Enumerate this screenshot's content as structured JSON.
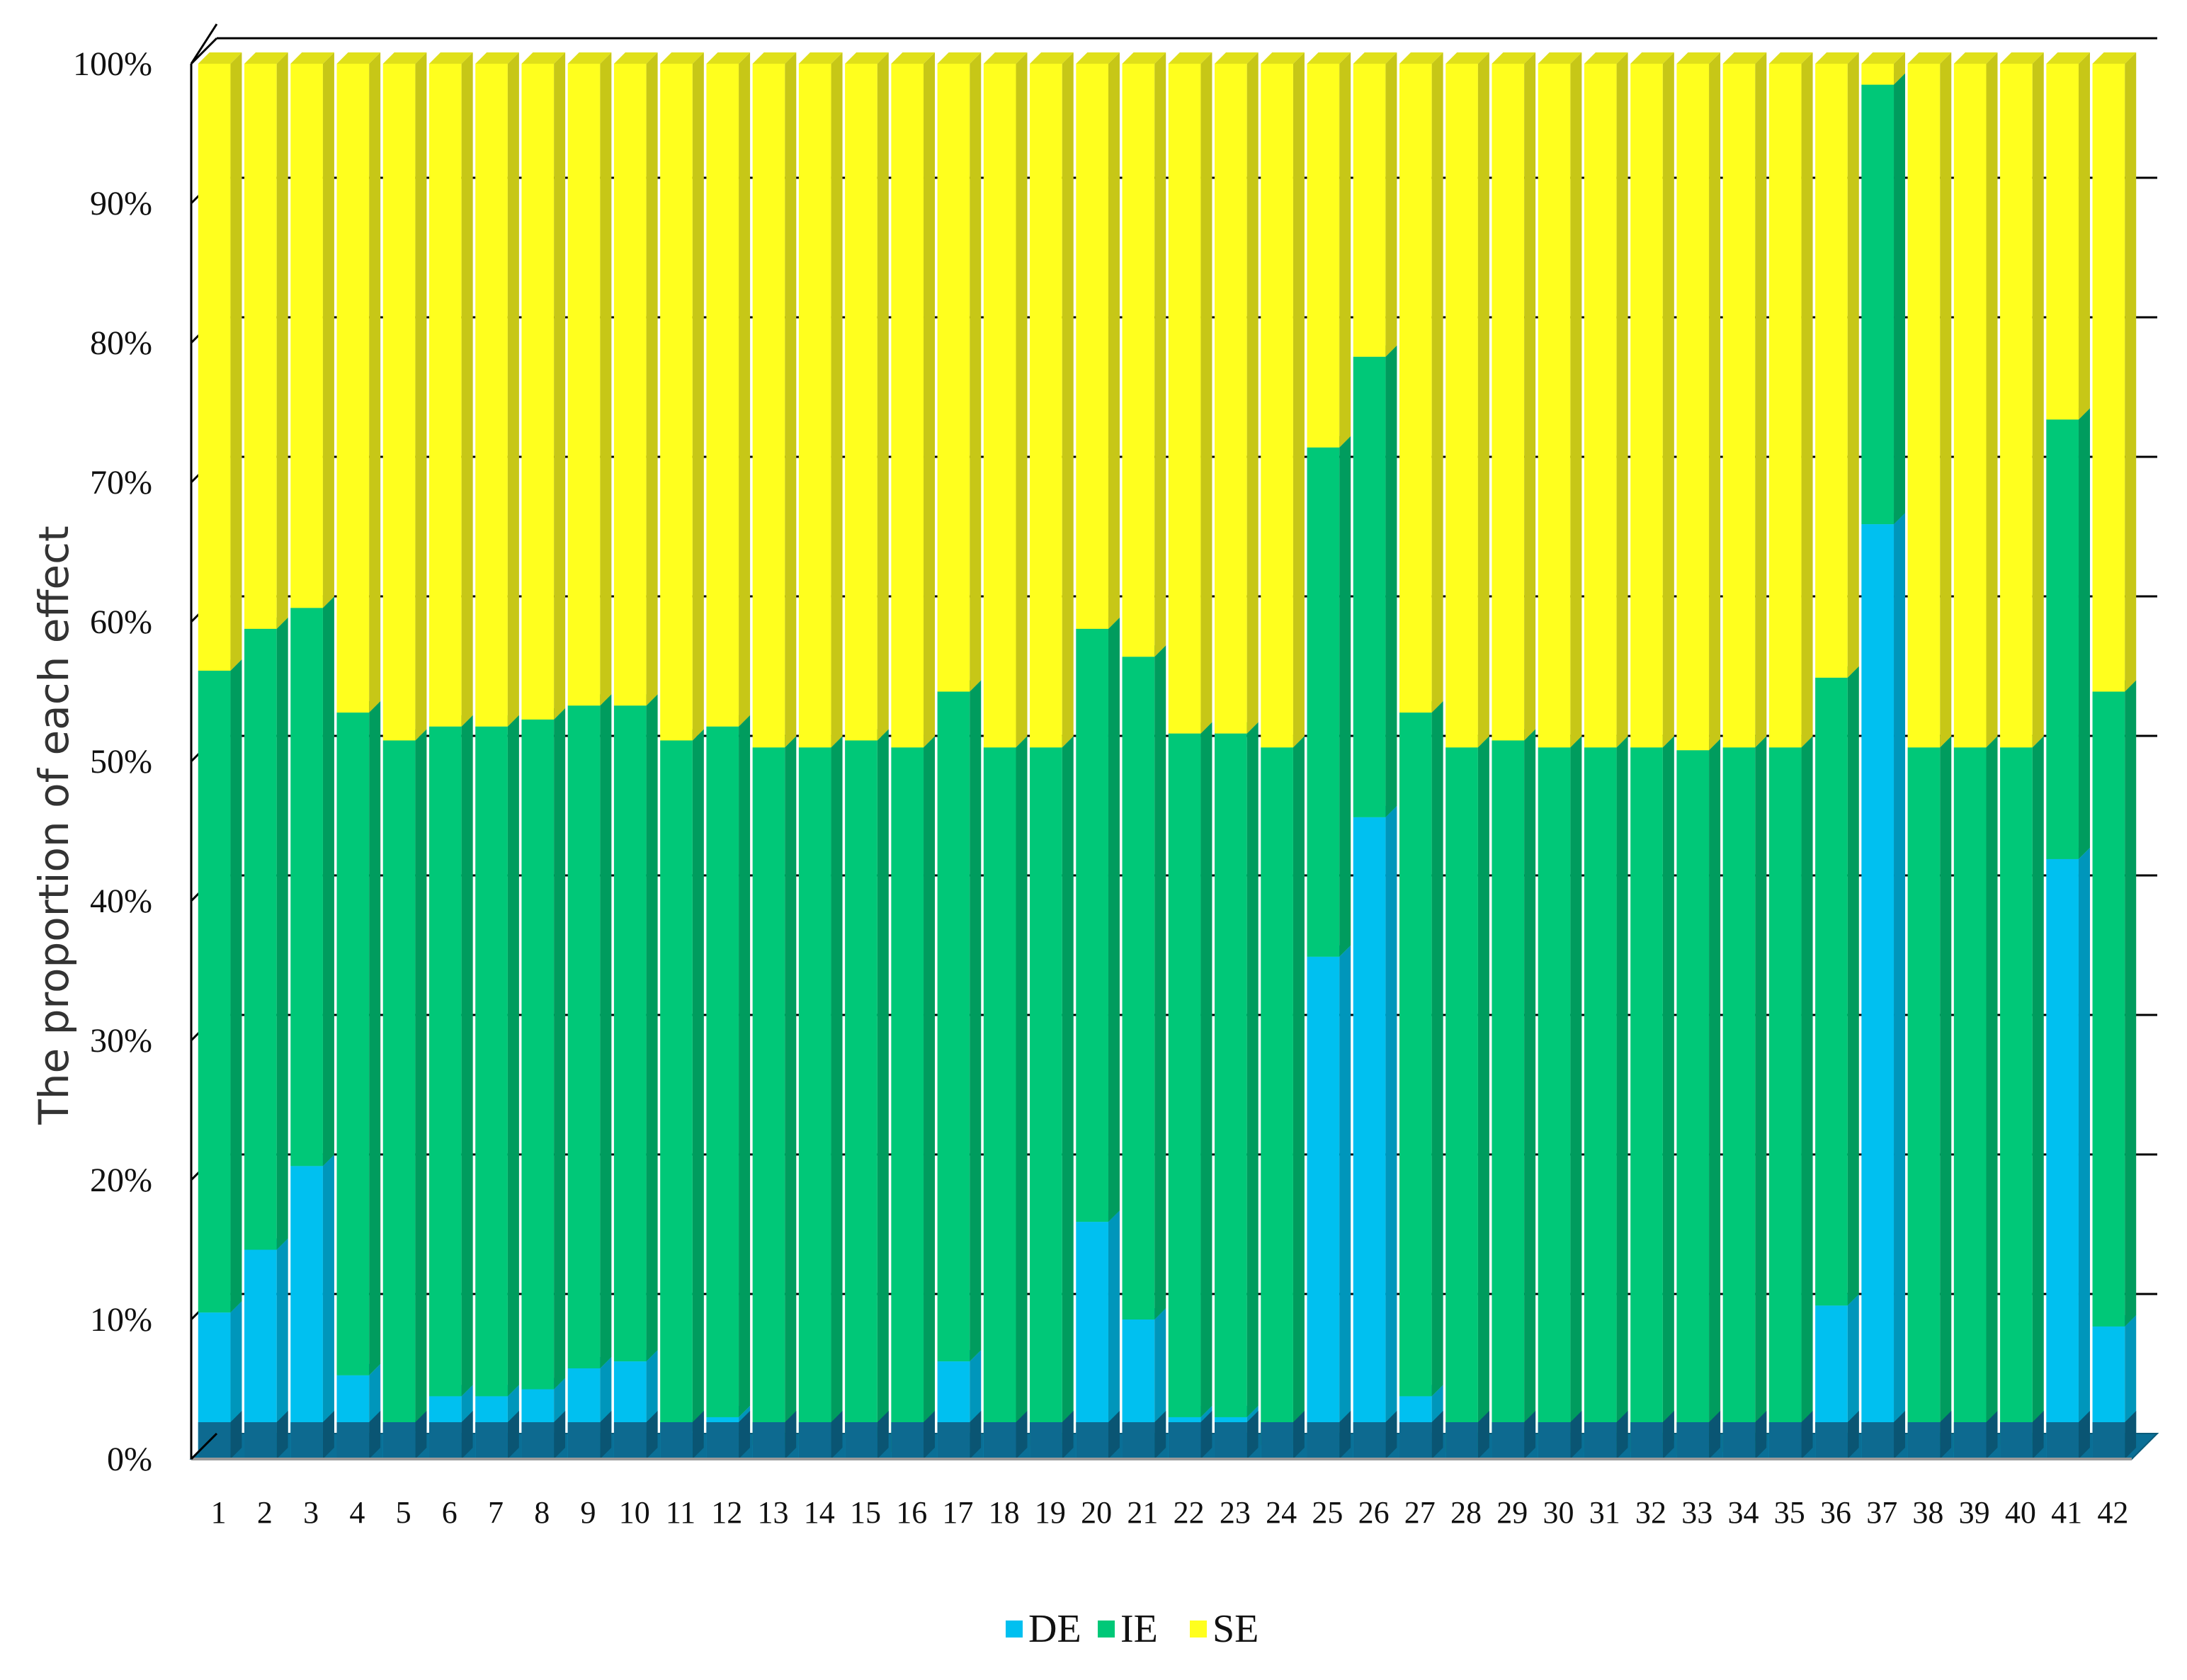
{
  "chart_data": {
    "type": "bar",
    "stacked": true,
    "percent_stacked": true,
    "three_d": true,
    "title": "",
    "xlabel": "",
    "ylabel": "The proportion of each effect",
    "ylim": [
      0,
      100
    ],
    "y_ticks": [
      "0%",
      "10%",
      "20%",
      "30%",
      "40%",
      "50%",
      "60%",
      "70%",
      "80%",
      "90%",
      "100%"
    ],
    "grid": true,
    "legend_position": "bottom",
    "categories": [
      "1",
      "2",
      "3",
      "4",
      "5",
      "6",
      "7",
      "8",
      "9",
      "10",
      "11",
      "12",
      "13",
      "14",
      "15",
      "16",
      "17",
      "18",
      "19",
      "20",
      "21",
      "22",
      "23",
      "24",
      "25",
      "26",
      "27",
      "28",
      "29",
      "30",
      "31",
      "32",
      "33",
      "34",
      "35",
      "36",
      "37",
      "38",
      "39",
      "40",
      "41",
      "42"
    ],
    "series": [
      {
        "name": "DE",
        "color": "#00C0F0",
        "values": [
          10.5,
          15,
          21,
          6,
          2,
          4.5,
          4.5,
          5,
          6.5,
          7,
          2,
          3,
          1,
          1,
          1.5,
          0.5,
          7,
          1.5,
          1,
          17,
          10,
          3,
          3,
          1,
          36,
          46,
          4.5,
          0.5,
          1.5,
          1,
          0.5,
          0.5,
          0.3,
          0.5,
          1.5,
          11,
          67,
          1,
          0.5,
          1,
          43,
          9.5
        ]
      },
      {
        "name": "IE",
        "color": "#00C878",
        "values": [
          46,
          44.5,
          40,
          47.5,
          49.5,
          48,
          48,
          48,
          47.5,
          47,
          49.5,
          49.5,
          50,
          50,
          50,
          50.5,
          48,
          49.5,
          50,
          42.5,
          47.5,
          49,
          49,
          50,
          36.5,
          33,
          49,
          50.5,
          50,
          50,
          50.5,
          50.5,
          50.5,
          50.5,
          49.5,
          45,
          31.5,
          50,
          50.5,
          50,
          31.5,
          45.5
        ]
      },
      {
        "name": "SE",
        "color": "#FFFF1E",
        "values": [
          43.5,
          40.5,
          39,
          46.5,
          48.5,
          47.5,
          47.5,
          47,
          46,
          46,
          48.5,
          47.5,
          49,
          49,
          48.5,
          49,
          45,
          49,
          49,
          40.5,
          42.5,
          48,
          48,
          49,
          27.5,
          21,
          46.5,
          49,
          48.5,
          49,
          49,
          49,
          49.2,
          49,
          49,
          44,
          1.5,
          49,
          49,
          49,
          25.5,
          45
        ]
      }
    ]
  }
}
